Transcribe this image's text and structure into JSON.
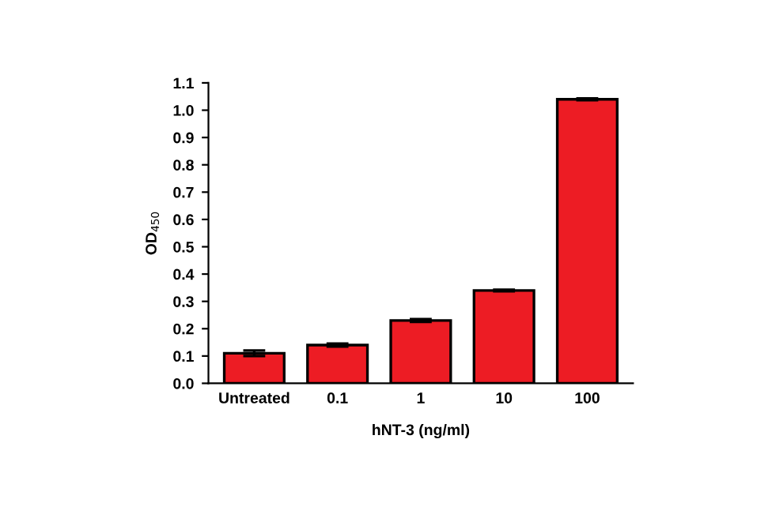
{
  "chart_data": {
    "type": "bar",
    "xlabel": "hNT-3 (ng/ml)",
    "ylabel": "OD$_{450}$",
    "categories": [
      "Untreated",
      "0.1",
      "1",
      "10",
      "100"
    ],
    "values": [
      0.11,
      0.14,
      0.23,
      0.34,
      1.04
    ],
    "errors": [
      0.01,
      0.005,
      0.005,
      0.003,
      0.003
    ],
    "color": "#ed1c24",
    "ylim": [
      0,
      1.1
    ],
    "yticks": [
      {
        "value": 0,
        "label": "0.0"
      },
      0.1,
      0.2,
      0.3,
      0.4,
      0.5,
      0.6,
      0.7,
      0.8,
      0.9,
      {
        "value": 1.0,
        "label": "1.0"
      },
      1.1
    ],
    "grid": false
  }
}
